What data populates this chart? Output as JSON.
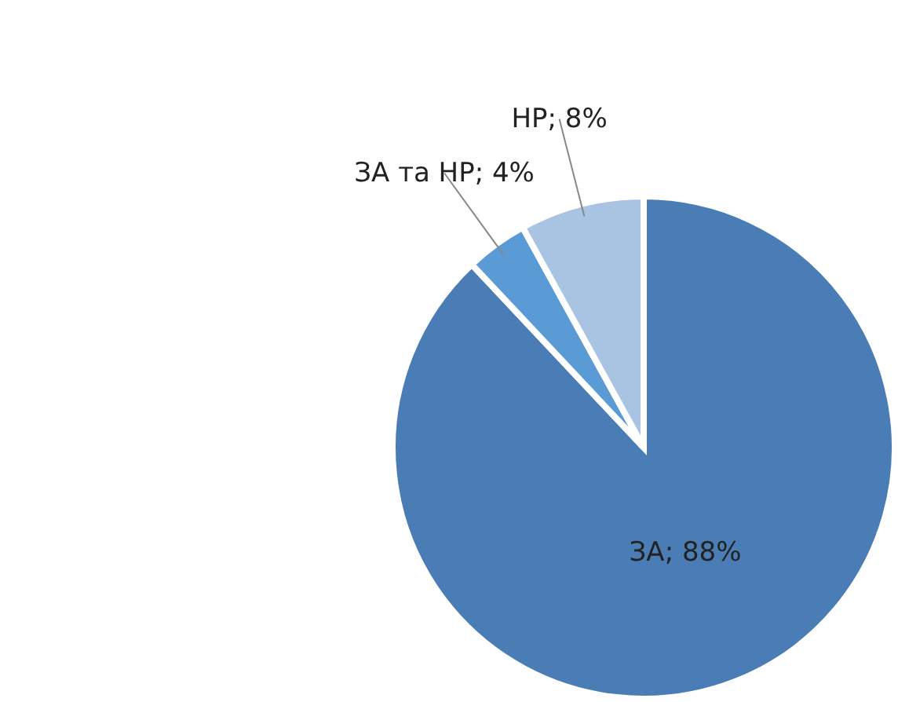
{
  "chart_data": {
    "type": "pie",
    "categories": [
      "ЗА",
      "ЗА та НР",
      "НР"
    ],
    "values": [
      88,
      4,
      8
    ],
    "colors": [
      "#4a7db5",
      "#5b9bd5",
      "#a9c3e3"
    ],
    "value_labels": [
      "88%",
      "4%",
      "8%"
    ],
    "legend": false
  }
}
